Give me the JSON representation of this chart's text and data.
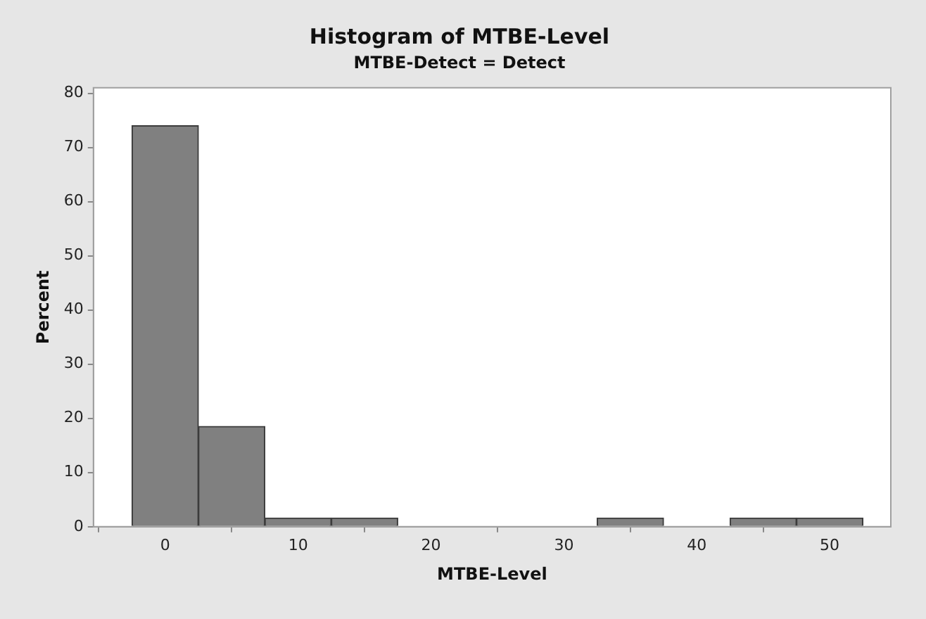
{
  "chart_data": {
    "type": "histogram",
    "title": "Histogram of MTBE-Level",
    "subtitle": "MTBE-Detect = Detect",
    "xlabel": "MTBE-Level",
    "ylabel": "Percent",
    "bins": [
      -2.5,
      2.5,
      7.5,
      12.5,
      17.5,
      22.5,
      27.5,
      32.5,
      37.5,
      42.5,
      47.5,
      52.5
    ],
    "values": [
      74,
      18.5,
      1.6,
      1.6,
      0,
      0,
      0,
      1.6,
      0,
      1.6,
      1.6
    ],
    "color": "#808080",
    "xlim": [
      -5.4,
      54.6
    ],
    "xticks": [
      0,
      10,
      20,
      30,
      40,
      50
    ],
    "ylim": [
      0,
      81
    ],
    "yticks": [
      0,
      10,
      20,
      30,
      40,
      50,
      60,
      70,
      80
    ]
  }
}
